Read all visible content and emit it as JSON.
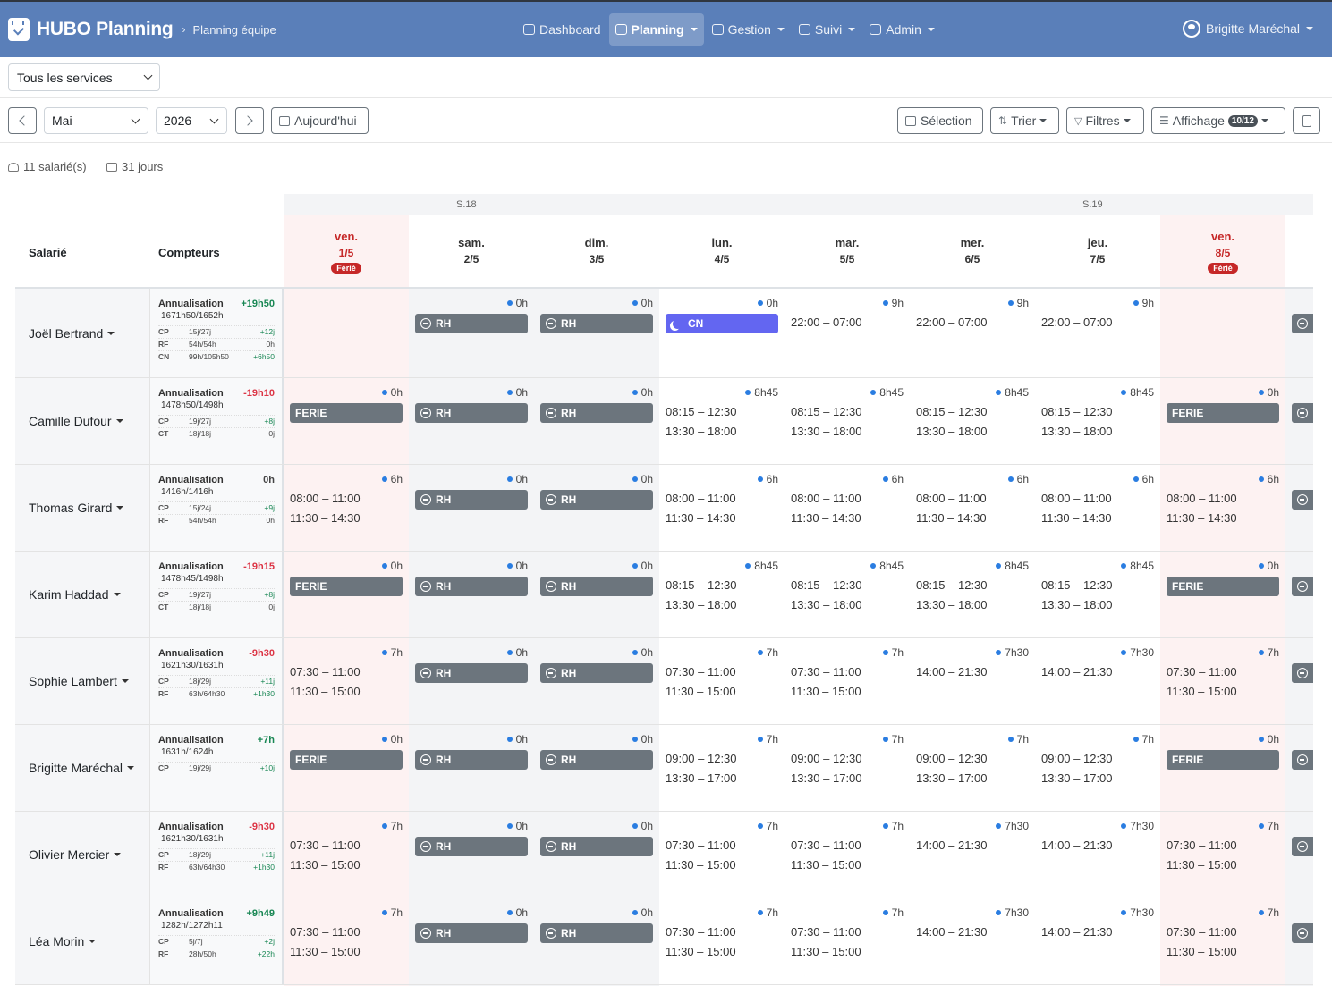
{
  "app": {
    "title": "HUBO Planning",
    "subtitle": "Planning équipe"
  },
  "nav": [
    {
      "label": "Dashboard",
      "icon": "gauge-icon",
      "active": false,
      "dropdown": false
    },
    {
      "label": "Planning",
      "icon": "calendar-icon",
      "active": true,
      "dropdown": true
    },
    {
      "label": "Gestion",
      "icon": "clipboard-icon",
      "active": false,
      "dropdown": true
    },
    {
      "label": "Suivi",
      "icon": "building-icon",
      "active": false,
      "dropdown": true
    },
    {
      "label": "Admin",
      "icon": "shield-icon",
      "active": false,
      "dropdown": true
    }
  ],
  "user": {
    "name": "Brigitte Maréchal"
  },
  "services": {
    "selected": "Tous les services"
  },
  "toolbar": {
    "month": "Mai",
    "year": "2026",
    "today": "Aujourd'hui",
    "selection": "Sélection",
    "sort": "Trier",
    "filters": "Filtres",
    "display": "Affichage",
    "display_badge": "10/12"
  },
  "summary": {
    "employees": "11 salarié(s)",
    "days": "31 jours"
  },
  "headers": {
    "employee": "Salarié",
    "counters": "Compteurs"
  },
  "weeks": [
    "S.18",
    "S.19"
  ],
  "days": [
    {
      "name": "ven.",
      "date": "1/5",
      "holiday": true,
      "holiday_label": "Férié",
      "weekend": false
    },
    {
      "name": "sam.",
      "date": "2/5",
      "holiday": false,
      "holiday_label": "",
      "weekend": true
    },
    {
      "name": "dim.",
      "date": "3/5",
      "holiday": false,
      "holiday_label": "",
      "weekend": true
    },
    {
      "name": "lun.",
      "date": "4/5",
      "holiday": false,
      "holiday_label": "",
      "weekend": false
    },
    {
      "name": "mar.",
      "date": "5/5",
      "holiday": false,
      "holiday_label": "",
      "weekend": false
    },
    {
      "name": "mer.",
      "date": "6/5",
      "holiday": false,
      "holiday_label": "",
      "weekend": false
    },
    {
      "name": "jeu.",
      "date": "7/5",
      "holiday": false,
      "holiday_label": "",
      "weekend": false
    },
    {
      "name": "ven.",
      "date": "8/5",
      "holiday": true,
      "holiday_label": "Férié",
      "weekend": false
    }
  ],
  "employees": [
    {
      "name": "Joël Bertrand",
      "annualisation": {
        "label": "Annualisation",
        "value": "+19h50",
        "detail": "1671h50/1652h"
      },
      "counters": [
        {
          "code": "CP",
          "detail": "15j/27j",
          "value": "+12j"
        },
        {
          "code": "RF",
          "detail": "54h/54h",
          "value": "0h"
        },
        {
          "code": "CN",
          "detail": "99h/105h50",
          "value": "+6h50"
        }
      ],
      "cells": [
        {
          "hours": "",
          "type": "empty",
          "times": []
        },
        {
          "hours": "0h",
          "type": "chip",
          "label": "RH",
          "times": []
        },
        {
          "hours": "0h",
          "type": "chip",
          "label": "RH",
          "times": []
        },
        {
          "hours": "0h",
          "type": "cn",
          "label": "CN",
          "times": []
        },
        {
          "hours": "9h",
          "type": "times",
          "times": [
            "22:00 – 07:00"
          ]
        },
        {
          "hours": "9h",
          "type": "times",
          "times": [
            "22:00 – 07:00"
          ]
        },
        {
          "hours": "9h",
          "type": "times",
          "times": [
            "22:00 – 07:00"
          ]
        },
        {
          "hours": "",
          "type": "empty",
          "times": []
        }
      ]
    },
    {
      "name": "Camille Dufour",
      "annualisation": {
        "label": "Annualisation",
        "value": "-19h10",
        "detail": "1478h50/1498h"
      },
      "counters": [
        {
          "code": "CP",
          "detail": "19j/27j",
          "value": "+8j"
        },
        {
          "code": "CT",
          "detail": "18j/18j",
          "value": "0j"
        }
      ],
      "cells": [
        {
          "hours": "0h",
          "type": "chip-plain",
          "label": "FERIE",
          "times": []
        },
        {
          "hours": "0h",
          "type": "chip",
          "label": "RH",
          "times": []
        },
        {
          "hours": "0h",
          "type": "chip",
          "label": "RH",
          "times": []
        },
        {
          "hours": "8h45",
          "type": "times",
          "times": [
            "08:15 – 12:30",
            "13:30 – 18:00"
          ]
        },
        {
          "hours": "8h45",
          "type": "times",
          "times": [
            "08:15 – 12:30",
            "13:30 – 18:00"
          ]
        },
        {
          "hours": "8h45",
          "type": "times",
          "times": [
            "08:15 – 12:30",
            "13:30 – 18:00"
          ]
        },
        {
          "hours": "8h45",
          "type": "times",
          "times": [
            "08:15 – 12:30",
            "13:30 – 18:00"
          ]
        },
        {
          "hours": "0h",
          "type": "chip-plain",
          "label": "FERIE",
          "times": []
        }
      ]
    },
    {
      "name": "Thomas Girard",
      "annualisation": {
        "label": "Annualisation",
        "value": "0h",
        "detail": "1416h/1416h"
      },
      "counters": [
        {
          "code": "CP",
          "detail": "15j/24j",
          "value": "+9j"
        },
        {
          "code": "RF",
          "detail": "54h/54h",
          "value": "0h"
        }
      ],
      "cells": [
        {
          "hours": "6h",
          "type": "times",
          "times": [
            "08:00 – 11:00",
            "11:30 – 14:30"
          ]
        },
        {
          "hours": "0h",
          "type": "chip",
          "label": "RH",
          "times": []
        },
        {
          "hours": "0h",
          "type": "chip",
          "label": "RH",
          "times": []
        },
        {
          "hours": "6h",
          "type": "times",
          "times": [
            "08:00 – 11:00",
            "11:30 – 14:30"
          ]
        },
        {
          "hours": "6h",
          "type": "times",
          "times": [
            "08:00 – 11:00",
            "11:30 – 14:30"
          ]
        },
        {
          "hours": "6h",
          "type": "times",
          "times": [
            "08:00 – 11:00",
            "11:30 – 14:30"
          ]
        },
        {
          "hours": "6h",
          "type": "times",
          "times": [
            "08:00 – 11:00",
            "11:30 – 14:30"
          ]
        },
        {
          "hours": "6h",
          "type": "times",
          "times": [
            "08:00 – 11:00",
            "11:30 – 14:30"
          ]
        }
      ]
    },
    {
      "name": "Karim Haddad",
      "annualisation": {
        "label": "Annualisation",
        "value": "-19h15",
        "detail": "1478h45/1498h"
      },
      "counters": [
        {
          "code": "CP",
          "detail": "19j/27j",
          "value": "+8j"
        },
        {
          "code": "CT",
          "detail": "18j/18j",
          "value": "0j"
        }
      ],
      "cells": [
        {
          "hours": "0h",
          "type": "chip-plain",
          "label": "FERIE",
          "times": []
        },
        {
          "hours": "0h",
          "type": "chip",
          "label": "RH",
          "times": []
        },
        {
          "hours": "0h",
          "type": "chip",
          "label": "RH",
          "times": []
        },
        {
          "hours": "8h45",
          "type": "times",
          "times": [
            "08:15 – 12:30",
            "13:30 – 18:00"
          ]
        },
        {
          "hours": "8h45",
          "type": "times",
          "times": [
            "08:15 – 12:30",
            "13:30 – 18:00"
          ]
        },
        {
          "hours": "8h45",
          "type": "times",
          "times": [
            "08:15 – 12:30",
            "13:30 – 18:00"
          ]
        },
        {
          "hours": "8h45",
          "type": "times",
          "times": [
            "08:15 – 12:30",
            "13:30 – 18:00"
          ]
        },
        {
          "hours": "0h",
          "type": "chip-plain",
          "label": "FERIE",
          "times": []
        }
      ]
    },
    {
      "name": "Sophie Lambert",
      "annualisation": {
        "label": "Annualisation",
        "value": "-9h30",
        "detail": "1621h30/1631h"
      },
      "counters": [
        {
          "code": "CP",
          "detail": "18j/29j",
          "value": "+11j"
        },
        {
          "code": "RF",
          "detail": "63h/64h30",
          "value": "+1h30"
        }
      ],
      "cells": [
        {
          "hours": "7h",
          "type": "times",
          "times": [
            "07:30 – 11:00",
            "11:30 – 15:00"
          ]
        },
        {
          "hours": "0h",
          "type": "chip",
          "label": "RH",
          "times": []
        },
        {
          "hours": "0h",
          "type": "chip",
          "label": "RH",
          "times": []
        },
        {
          "hours": "7h",
          "type": "times",
          "times": [
            "07:30 – 11:00",
            "11:30 – 15:00"
          ]
        },
        {
          "hours": "7h",
          "type": "times",
          "times": [
            "07:30 – 11:00",
            "11:30 – 15:00"
          ]
        },
        {
          "hours": "7h30",
          "type": "times",
          "times": [
            "14:00 – 21:30"
          ]
        },
        {
          "hours": "7h30",
          "type": "times",
          "times": [
            "14:00 – 21:30"
          ]
        },
        {
          "hours": "7h",
          "type": "times",
          "times": [
            "07:30 – 11:00",
            "11:30 – 15:00"
          ]
        }
      ]
    },
    {
      "name": "Brigitte Maréchal",
      "annualisation": {
        "label": "Annualisation",
        "value": "+7h",
        "detail": "1631h/1624h"
      },
      "counters": [
        {
          "code": "CP",
          "detail": "19j/29j",
          "value": "+10j"
        }
      ],
      "cells": [
        {
          "hours": "0h",
          "type": "chip-plain",
          "label": "FERIE",
          "times": []
        },
        {
          "hours": "0h",
          "type": "chip",
          "label": "RH",
          "times": []
        },
        {
          "hours": "0h",
          "type": "chip",
          "label": "RH",
          "times": []
        },
        {
          "hours": "7h",
          "type": "times",
          "times": [
            "09:00 – 12:30",
            "13:30 – 17:00"
          ]
        },
        {
          "hours": "7h",
          "type": "times",
          "times": [
            "09:00 – 12:30",
            "13:30 – 17:00"
          ]
        },
        {
          "hours": "7h",
          "type": "times",
          "times": [
            "09:00 – 12:30",
            "13:30 – 17:00"
          ]
        },
        {
          "hours": "7h",
          "type": "times",
          "times": [
            "09:00 – 12:30",
            "13:30 – 17:00"
          ]
        },
        {
          "hours": "0h",
          "type": "chip-plain",
          "label": "FERIE",
          "times": []
        }
      ]
    },
    {
      "name": "Olivier Mercier",
      "annualisation": {
        "label": "Annualisation",
        "value": "-9h30",
        "detail": "1621h30/1631h"
      },
      "counters": [
        {
          "code": "CP",
          "detail": "18j/29j",
          "value": "+11j"
        },
        {
          "code": "RF",
          "detail": "63h/64h30",
          "value": "+1h30"
        }
      ],
      "cells": [
        {
          "hours": "7h",
          "type": "times",
          "times": [
            "07:30 – 11:00",
            "11:30 – 15:00"
          ]
        },
        {
          "hours": "0h",
          "type": "chip",
          "label": "RH",
          "times": []
        },
        {
          "hours": "0h",
          "type": "chip",
          "label": "RH",
          "times": []
        },
        {
          "hours": "7h",
          "type": "times",
          "times": [
            "07:30 – 11:00",
            "11:30 – 15:00"
          ]
        },
        {
          "hours": "7h",
          "type": "times",
          "times": [
            "07:30 – 11:00",
            "11:30 – 15:00"
          ]
        },
        {
          "hours": "7h30",
          "type": "times",
          "times": [
            "14:00 – 21:30"
          ]
        },
        {
          "hours": "7h30",
          "type": "times",
          "times": [
            "14:00 – 21:30"
          ]
        },
        {
          "hours": "7h",
          "type": "times",
          "times": [
            "07:30 – 11:00",
            "11:30 – 15:00"
          ]
        }
      ]
    },
    {
      "name": "Léa Morin",
      "annualisation": {
        "label": "Annualisation",
        "value": "+9h49",
        "detail": "1282h/1272h11"
      },
      "counters": [
        {
          "code": "CP",
          "detail": "5j/7j",
          "value": "+2j"
        },
        {
          "code": "RF",
          "detail": "28h/50h",
          "value": "+22h"
        }
      ],
      "cells": [
        {
          "hours": "7h",
          "type": "times",
          "times": [
            "07:30 – 11:00",
            "11:30 – 15:00"
          ]
        },
        {
          "hours": "0h",
          "type": "chip",
          "label": "RH",
          "times": []
        },
        {
          "hours": "0h",
          "type": "chip",
          "label": "RH",
          "times": []
        },
        {
          "hours": "7h",
          "type": "times",
          "times": [
            "07:30 – 11:00",
            "11:30 – 15:00"
          ]
        },
        {
          "hours": "7h",
          "type": "times",
          "times": [
            "07:30 – 11:00",
            "11:30 – 15:00"
          ]
        },
        {
          "hours": "7h30",
          "type": "times",
          "times": [
            "14:00 – 21:30"
          ]
        },
        {
          "hours": "7h30",
          "type": "times",
          "times": [
            "14:00 – 21:30"
          ]
        },
        {
          "hours": "7h",
          "type": "times",
          "times": [
            "07:30 – 11:00",
            "11:30 – 15:00"
          ]
        }
      ]
    }
  ],
  "colors": {
    "navbar": "#5a7fb9",
    "holiday_bg": "#fdf2f2",
    "weekend_bg": "#f3f4f6",
    "chip": "#6c757d",
    "cn": "#6366f1",
    "positive": "#198754",
    "negative": "#dc3545",
    "dot": "#2a7de1"
  }
}
